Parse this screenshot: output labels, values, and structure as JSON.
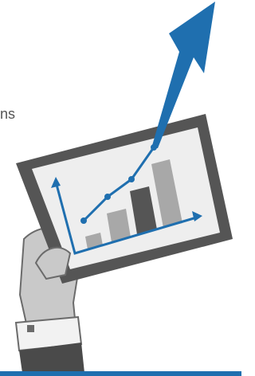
{
  "text": {
    "fragment": "ns"
  }
}
